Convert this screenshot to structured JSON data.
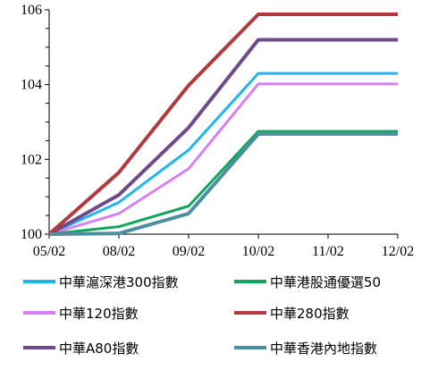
{
  "chart_data": {
    "type": "line",
    "categories": [
      "05/02",
      "08/02",
      "09/02",
      "10/02",
      "11/02",
      "12/02"
    ],
    "ylim": [
      100,
      106
    ],
    "yticks": [
      100,
      102,
      104,
      106
    ],
    "series": [
      {
        "name": "中華滬深港300指數",
        "color": "#1fb5ef",
        "values": [
          100,
          100.85,
          102.25,
          104.3,
          104.3,
          104.3
        ]
      },
      {
        "name": "中華港股通優選50",
        "color": "#10a75a",
        "values": [
          100,
          100.2,
          100.75,
          102.75,
          102.75,
          102.75
        ]
      },
      {
        "name": "中華120指數",
        "color": "#d580f5",
        "values": [
          100,
          100.55,
          101.75,
          104.02,
          104.02,
          104.02
        ]
      },
      {
        "name": "中華280指數",
        "color": "#b23a3e",
        "values": [
          100,
          101.65,
          103.98,
          105.88,
          105.88,
          105.88
        ]
      },
      {
        "name": "中華A80指數",
        "color": "#6f4a88",
        "values": [
          100,
          101.05,
          102.85,
          105.2,
          105.2,
          105.2
        ]
      },
      {
        "name": "中華香港內地指數",
        "color": "#4b8fa0",
        "values": [
          100,
          100.02,
          100.55,
          102.68,
          102.68,
          102.68
        ]
      }
    ]
  }
}
